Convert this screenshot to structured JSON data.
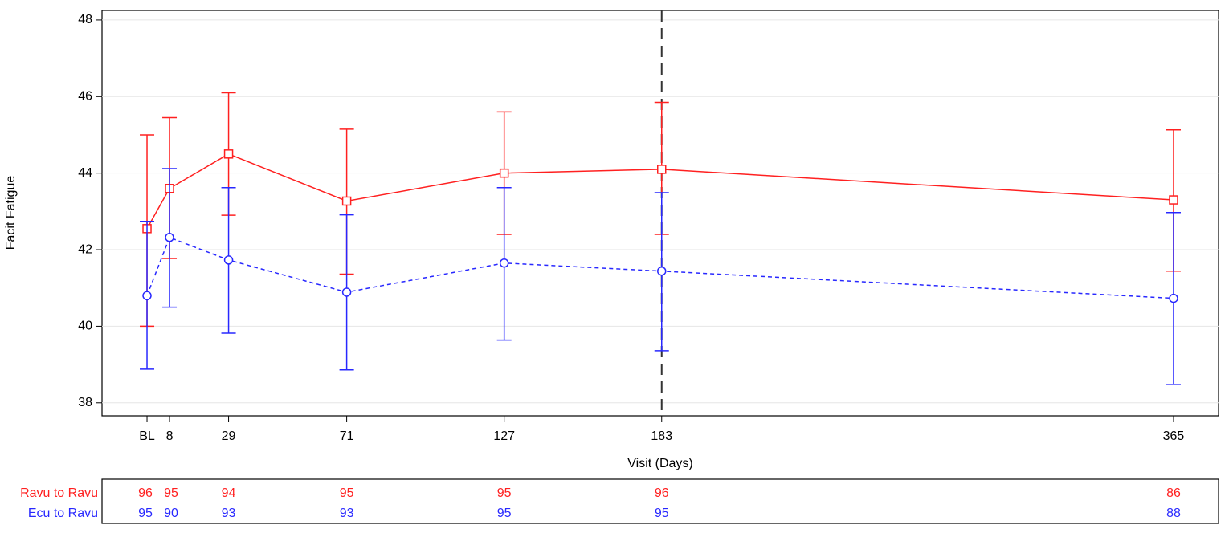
{
  "chart_data": {
    "type": "line",
    "y_label": "Facit Fatigue",
    "x_label": "Visit (Days)",
    "x": [
      0,
      8,
      29,
      71,
      127,
      183,
      365
    ],
    "xlim": [
      -16,
      381
    ],
    "xticks": [
      {
        "value": 0,
        "label": "BL"
      },
      8,
      29,
      71,
      127,
      183,
      365
    ],
    "ylim": [
      37.66,
      48.25
    ],
    "yticks": [
      38,
      40,
      42,
      44,
      46,
      48
    ],
    "grid": true,
    "reference_line_x": 183,
    "series": [
      {
        "name": "Ravu to Ravu",
        "color": "#ff2020",
        "marker": "square",
        "dashed": false,
        "values": [
          42.55,
          43.6,
          44.5,
          43.27,
          44.0,
          44.1,
          43.3
        ],
        "lower": [
          40.0,
          41.77,
          42.9,
          41.36,
          42.4,
          42.4,
          41.44
        ],
        "upper": [
          45.0,
          45.45,
          46.1,
          45.15,
          45.6,
          45.85,
          45.13
        ],
        "counts": [
          96,
          95,
          94,
          95,
          95,
          96,
          86
        ]
      },
      {
        "name": "Ecu to Ravu",
        "color": "#2828ff",
        "marker": "circle",
        "dashed": true,
        "values": [
          40.8,
          42.32,
          41.73,
          40.89,
          41.65,
          41.44,
          40.73
        ],
        "lower": [
          38.88,
          40.5,
          39.82,
          38.86,
          39.64,
          39.36,
          38.48
        ],
        "upper": [
          42.74,
          44.12,
          43.62,
          42.91,
          43.62,
          43.49,
          42.97
        ],
        "counts": [
          95,
          90,
          93,
          93,
          95,
          95,
          88
        ]
      }
    ]
  }
}
